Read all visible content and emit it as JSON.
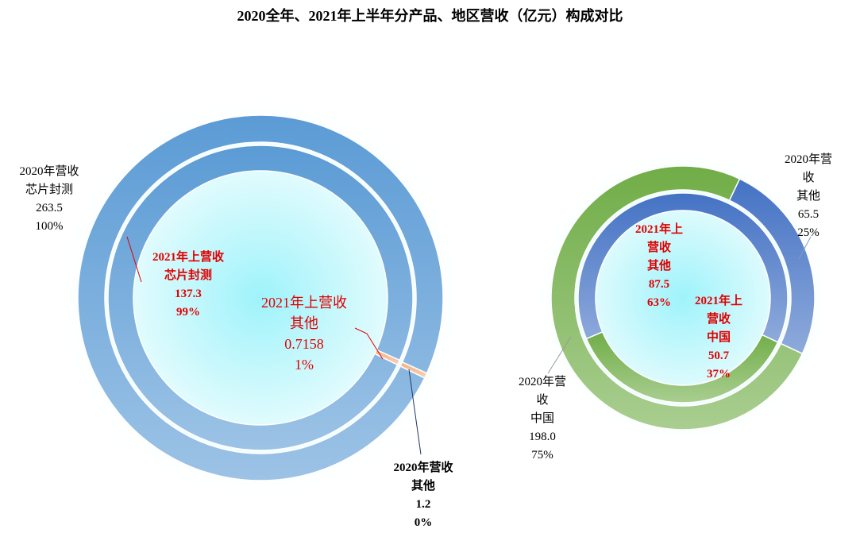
{
  "title": "2020全年、2021年上半年分产品、地区营收（亿元）构成对比",
  "chart_data": [
    {
      "type": "doughnut",
      "series": [
        {
          "name": "2020年营收",
          "categories": [
            "芯片封测",
            "其他"
          ],
          "values": [
            263.5,
            1.2
          ],
          "percent_labels": [
            "100%",
            "0%"
          ],
          "colors": [
            "#5b9bd5",
            "#f4b183"
          ]
        },
        {
          "name": "2021年上营收",
          "categories": [
            "芯片封测",
            "其他"
          ],
          "values": [
            137.3,
            0.7158
          ],
          "percent_labels": [
            "99%",
            "1%"
          ],
          "colors": [
            "#5b9bd5",
            "#f4b183"
          ]
        }
      ]
    },
    {
      "type": "doughnut",
      "series": [
        {
          "name": "2020年营收",
          "categories": [
            "中国",
            "其他"
          ],
          "values": [
            198,
            65.5
          ],
          "value_labels": [
            "198.0",
            "65.5"
          ],
          "percent_labels": [
            "75%",
            "25%"
          ],
          "colors": [
            "#70ad47",
            "#4472c4"
          ]
        },
        {
          "name": "2021年上营收",
          "categories": [
            "中国",
            "其他"
          ],
          "values": [
            50.7,
            87.5
          ],
          "percent_labels": [
            "37%",
            "63%"
          ],
          "colors": [
            "#70ad47",
            "#4472c4"
          ]
        }
      ]
    }
  ]
}
